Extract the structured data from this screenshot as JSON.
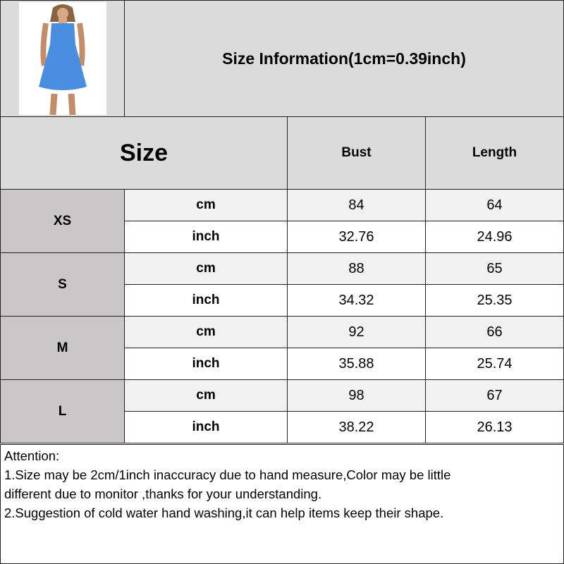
{
  "title": "Size Information(1cm=0.39inch)",
  "product_image": {
    "alt_icon": "blue-floral-dress-photo",
    "dress_color": "#4a8ee0"
  },
  "table": {
    "headers": {
      "size": "Size",
      "bust": "Bust",
      "length": "Length"
    },
    "rows": [
      {
        "size": "XS",
        "cm": {
          "unit": "cm",
          "bust": "84",
          "length": "64"
        },
        "inch": {
          "unit": "inch",
          "bust": "32.76",
          "length": "24.96"
        }
      },
      {
        "size": "S",
        "cm": {
          "unit": "cm",
          "bust": "88",
          "length": "65"
        },
        "inch": {
          "unit": "inch",
          "bust": "34.32",
          "length": "25.35"
        }
      },
      {
        "size": "M",
        "cm": {
          "unit": "cm",
          "bust": "92",
          "length": "66"
        },
        "inch": {
          "unit": "inch",
          "bust": "35.88",
          "length": "25.74"
        }
      },
      {
        "size": "L",
        "cm": {
          "unit": "cm",
          "bust": "98",
          "length": "67"
        },
        "inch": {
          "unit": "inch",
          "bust": "38.22",
          "length": "26.13"
        }
      }
    ]
  },
  "notes": {
    "heading": "Attention:",
    "line1a": "1.Size may be 2cm/1inch inaccuracy due to hand measure,Color may be little",
    "line1b": "different due to monitor ,thanks for your understanding.",
    "line2": "2.Suggestion of cold water hand washing,it can help items keep their shape."
  }
}
